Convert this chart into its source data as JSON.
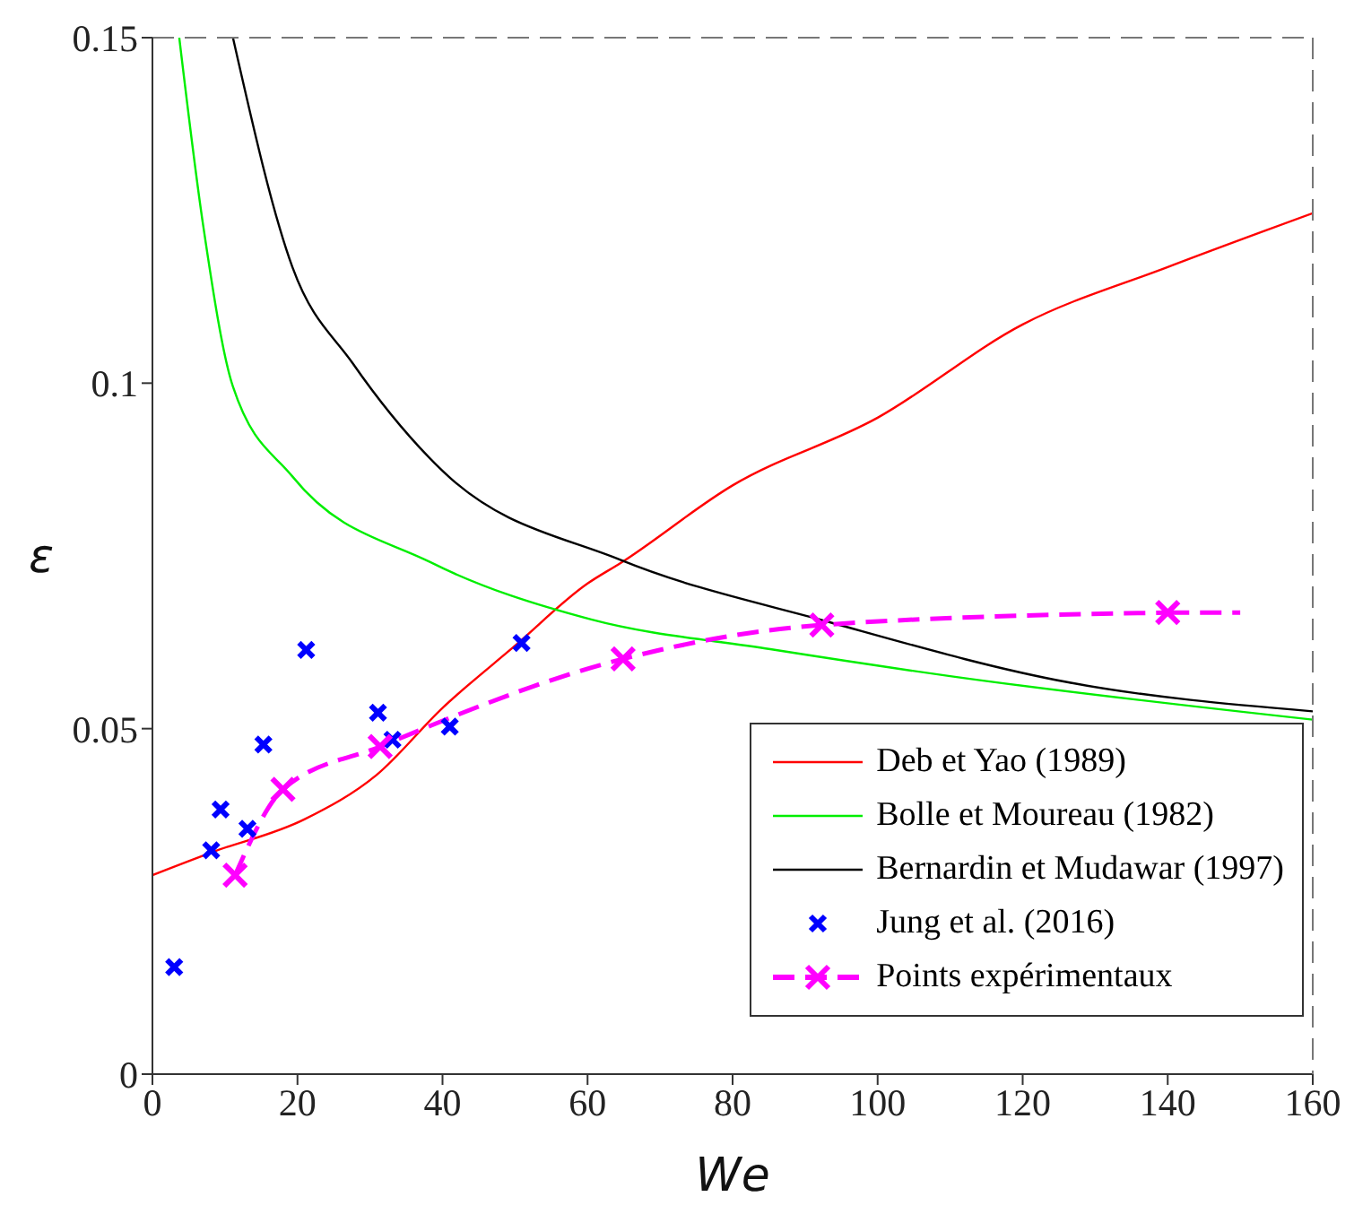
{
  "chart_data": {
    "type": "line",
    "xlabel": "We",
    "ylabel": "ε",
    "xlim": [
      0,
      160
    ],
    "ylim": [
      0,
      0.15
    ],
    "xticks": [
      0,
      20,
      40,
      60,
      80,
      100,
      120,
      140,
      160
    ],
    "yticks": [
      0,
      0.05,
      0.1,
      0.15
    ],
    "grid": false,
    "legend": "bottom right",
    "series": [
      {
        "name": "Deb et Yao (1989)",
        "color": "#ff0000",
        "marker": "none",
        "x": [
          0,
          8.2,
          21,
          30.9,
          40,
          50,
          60,
          64.6,
          80,
          100,
          120,
          140,
          160
        ],
        "values": [
          0.0288,
          0.0321,
          0.0369,
          0.0433,
          0.053,
          0.062,
          0.071,
          0.074,
          0.0852,
          0.095,
          0.1085,
          0.1168,
          0.1246
        ]
      },
      {
        "name": "Bolle et Moureau (1982)",
        "color": "#00ee00",
        "marker": "none",
        "x": [
          3.7,
          7,
          11.1,
          19.3,
          38.3,
          60.5,
          85.2,
          110,
          160
        ],
        "values": [
          0.15,
          0.1228,
          0.0995,
          0.0865,
          0.0741,
          0.0658,
          0.0615,
          0.0576,
          0.0513
        ]
      },
      {
        "name": "Bernardin et Mudawar (1997)",
        "color": "#000000",
        "marker": "none",
        "x": [
          11.1,
          19.3,
          27.6,
          39.9,
          64.6,
          93.4,
          126.3,
          160
        ],
        "values": [
          0.15,
          0.1168,
          0.1029,
          0.0874,
          0.0744,
          0.0654,
          0.0567,
          0.0525
        ]
      },
      {
        "name": "Jung et al. (2016)",
        "color": "#0000ff",
        "type": "scatter",
        "marker": "cross",
        "x": [
          3,
          8.1,
          9.4,
          13.1,
          15.3,
          21.2,
          31.1,
          33.1,
          41,
          50.9
        ],
        "values": [
          0.0155,
          0.0324,
          0.0383,
          0.0355,
          0.0477,
          0.0614,
          0.0523,
          0.0484,
          0.0503,
          0.0624
        ]
      },
      {
        "name": "Points expérimentaux",
        "color": "#ff00ff",
        "marker": "cross",
        "line_style": "dashed",
        "x": [
          11.4,
          18,
          31.4,
          64.9,
          92.3,
          140
        ],
        "values": [
          0.0288,
          0.0412,
          0.0474,
          0.0601,
          0.065,
          0.0668
        ]
      },
      {
        "color": "#ff00ff",
        "marker": "none",
        "line_style": "dashed",
        "x": [
          140,
          150
        ],
        "values": [
          0.0668,
          0.0668
        ]
      }
    ]
  }
}
